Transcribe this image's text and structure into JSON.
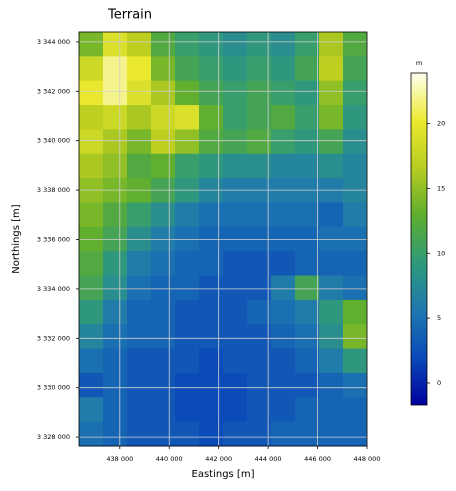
{
  "chart_data": {
    "type": "heatmap",
    "title": "Terrain",
    "xlabel": "Eastings [m]",
    "ylabel": "Northings [m]",
    "xlim": [
      436350,
      448000
    ],
    "ylim": [
      3327640,
      3344400
    ],
    "xticks": [
      {
        "value": 438000,
        "label": "438 000"
      },
      {
        "value": 440000,
        "label": "440 000"
      },
      {
        "value": 442000,
        "label": "442 000"
      },
      {
        "value": 444000,
        "label": "444 000"
      },
      {
        "value": 446000,
        "label": "446 000"
      },
      {
        "value": 448000,
        "label": "448 000"
      }
    ],
    "yticks": [
      {
        "value": 3328000,
        "label": "3 328 000"
      },
      {
        "value": 3330000,
        "label": "3 330 000"
      },
      {
        "value": 3332000,
        "label": "3 332 000"
      },
      {
        "value": 3334000,
        "label": "3 334 000"
      },
      {
        "value": 3336000,
        "label": "3 336 000"
      },
      {
        "value": 3338000,
        "label": "3 338 000"
      },
      {
        "value": 3340000,
        "label": "3 340 000"
      },
      {
        "value": 3342000,
        "label": "3 342 000"
      },
      {
        "value": 3344000,
        "label": "3 344 000"
      }
    ],
    "grid": true,
    "colorbar_label": "m",
    "clim": [
      -1.7,
      23.9
    ],
    "cticks": [
      0,
      5,
      10,
      15,
      20
    ],
    "colormap": [
      "#0000a0",
      "#0a4ab8",
      "#1f78b0",
      "#2f9a7a",
      "#5eae2e",
      "#b8cc20",
      "#ecea30",
      "#fffff0"
    ],
    "values": [
      [
        14,
        19,
        17,
        12,
        10,
        9,
        8,
        9,
        8,
        10,
        16,
        12
      ],
      [
        18,
        22,
        20,
        14,
        11,
        10,
        9,
        10,
        9,
        11,
        17,
        11
      ],
      [
        20,
        22,
        19,
        16,
        13,
        11,
        10,
        11,
        10,
        9,
        15,
        10
      ],
      [
        17,
        18,
        16,
        18,
        19,
        13,
        10,
        11,
        12,
        10,
        14,
        9
      ],
      [
        18,
        16,
        14,
        17,
        15,
        12,
        11,
        12,
        10,
        9,
        11,
        8
      ],
      [
        16,
        15,
        12,
        13,
        10,
        9,
        8,
        8,
        7,
        7,
        8,
        7
      ],
      [
        15,
        14,
        13,
        11,
        9,
        7,
        6,
        6,
        6,
        6,
        6,
        7
      ],
      [
        14,
        12,
        10,
        8,
        6,
        5,
        5,
        5,
        5,
        5,
        4,
        6
      ],
      [
        13,
        11,
        8,
        6,
        5,
        4,
        4,
        4,
        4,
        4,
        5,
        5
      ],
      [
        12,
        9,
        6,
        5,
        4,
        4,
        3,
        3,
        3,
        4,
        4,
        4
      ],
      [
        11,
        8,
        5,
        4,
        4,
        3,
        3,
        3,
        6,
        11,
        6,
        5
      ],
      [
        9,
        6,
        4,
        4,
        3,
        3,
        3,
        4,
        5,
        6,
        9,
        13
      ],
      [
        7,
        5,
        4,
        4,
        3,
        3,
        3,
        3,
        4,
        5,
        8,
        14
      ],
      [
        5,
        4,
        3,
        3,
        3,
        2,
        3,
        3,
        3,
        4,
        6,
        9
      ],
      [
        3,
        4,
        3,
        3,
        2,
        2,
        2,
        3,
        3,
        3,
        4,
        5
      ],
      [
        6,
        4,
        3,
        3,
        2,
        2,
        2,
        3,
        3,
        4,
        4,
        4
      ],
      [
        5,
        4,
        3,
        3,
        3,
        2,
        3,
        3,
        4,
        4,
        4,
        4
      ]
    ]
  }
}
